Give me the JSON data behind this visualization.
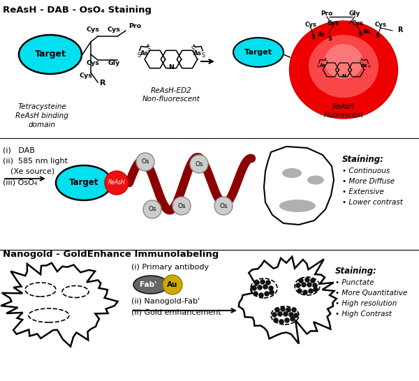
{
  "title_top": "ReAsH - DAB - OsO₄ Staining",
  "title_bottom": "Nanogold - GoldEnhance Immunolabeling",
  "staining_top_bullets": [
    "Continuous",
    "More Diffuse",
    "Extensive",
    "Lower contrast"
  ],
  "staining_bottom_bullets": [
    "Punctate",
    "More Quantitative",
    "High resolution",
    "High Contrast"
  ],
  "target_color": "#00e0ee",
  "target_edge": "#000000",
  "reash_red": "#ee1111",
  "reash_red_light": "#ff7777",
  "dab_chain_color": "#8b0000",
  "os_color": "#cccccc",
  "os_edge": "#888888",
  "bg_color": "#ffffff",
  "gray_organelle": "#b0b0b0",
  "black_dot": "#111111",
  "gold_color": "#ccaa00",
  "fab_color": "#666666"
}
